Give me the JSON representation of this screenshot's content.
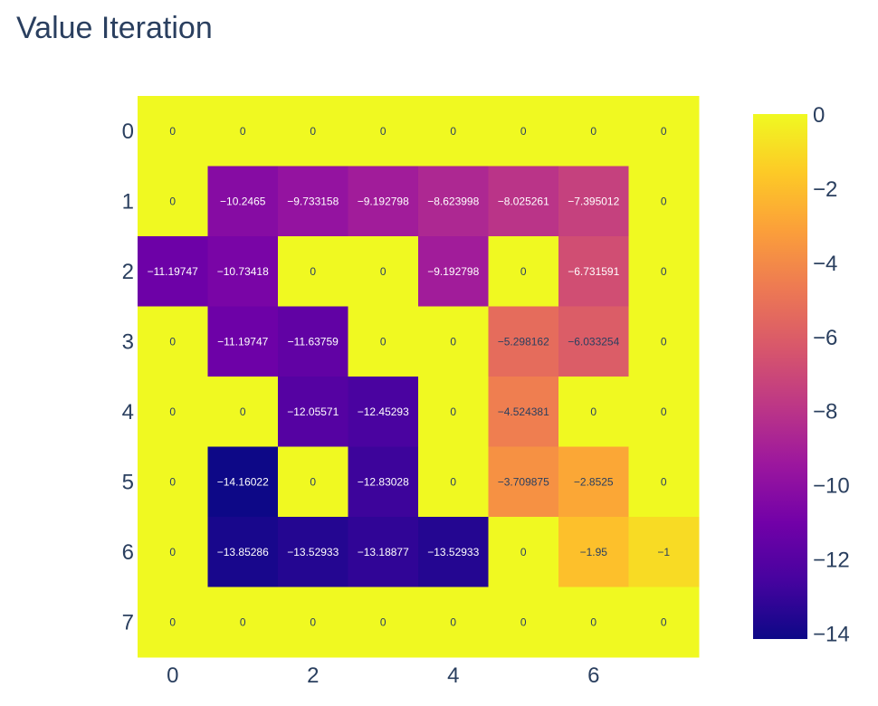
{
  "chart_data": {
    "type": "heatmap",
    "title": "Value Iteration",
    "xlabel": "",
    "ylabel": "",
    "x": [
      0,
      1,
      2,
      3,
      4,
      5,
      6,
      7
    ],
    "y": [
      0,
      1,
      2,
      3,
      4,
      5,
      6,
      7
    ],
    "x_ticks": [
      "0",
      "2",
      "4",
      "6"
    ],
    "y_ticks": [
      "0",
      "1",
      "2",
      "3",
      "4",
      "5",
      "6",
      "7"
    ],
    "z": [
      [
        0,
        0,
        0,
        0,
        0,
        0,
        0,
        0
      ],
      [
        0,
        -10.2465,
        -9.733158,
        -9.192798,
        -8.623998,
        -8.025261,
        -7.395012,
        0
      ],
      [
        -11.19747,
        -10.73418,
        0,
        0,
        -9.192798,
        0,
        -6.731591,
        0
      ],
      [
        0,
        -11.19747,
        -11.63759,
        0,
        0,
        -5.298162,
        -6.033254,
        0
      ],
      [
        0,
        0,
        -12.05571,
        -12.45293,
        0,
        -4.524381,
        0,
        0
      ],
      [
        0,
        -14.16022,
        0,
        -12.83028,
        0,
        -3.709875,
        -2.8525,
        0
      ],
      [
        0,
        -13.85286,
        -13.52933,
        -13.18877,
        -13.52933,
        0,
        -1.95,
        -1
      ],
      [
        0,
        0,
        0,
        0,
        0,
        0,
        0,
        0
      ]
    ],
    "text": [
      [
        "0",
        "0",
        "0",
        "0",
        "0",
        "0",
        "0",
        "0"
      ],
      [
        "0",
        "−10.2465",
        "−9.733158",
        "−9.192798",
        "−8.623998",
        "−8.025261",
        "−7.395012",
        "0"
      ],
      [
        "−11.19747",
        "−10.73418",
        "0",
        "0",
        "−9.192798",
        "0",
        "−6.731591",
        "0"
      ],
      [
        "0",
        "−11.19747",
        "−11.63759",
        "0",
        "0",
        "−5.298162",
        "−6.033254",
        "0"
      ],
      [
        "0",
        "0",
        "−12.05571",
        "−12.45293",
        "0",
        "−4.524381",
        "0",
        "0"
      ],
      [
        "0",
        "−14.16022",
        "0",
        "−12.83028",
        "0",
        "−3.709875",
        "−2.8525",
        "0"
      ],
      [
        "0",
        "−13.85286",
        "−13.52933",
        "−13.18877",
        "−13.52933",
        "0",
        "−1.95",
        "−1"
      ],
      [
        "0",
        "0",
        "0",
        "0",
        "0",
        "0",
        "0",
        "0"
      ]
    ],
    "zmin": -14.16022,
    "zmax": 0,
    "colorscale": "Plasma",
    "colorbar": {
      "ticks": [
        0,
        -2,
        -4,
        -6,
        -8,
        -10,
        -12,
        -14
      ],
      "tick_labels": [
        "0",
        "−2",
        "−4",
        "−6",
        "−8",
        "−10",
        "−12",
        "−14"
      ]
    },
    "y_reversed": true,
    "grid": false
  }
}
